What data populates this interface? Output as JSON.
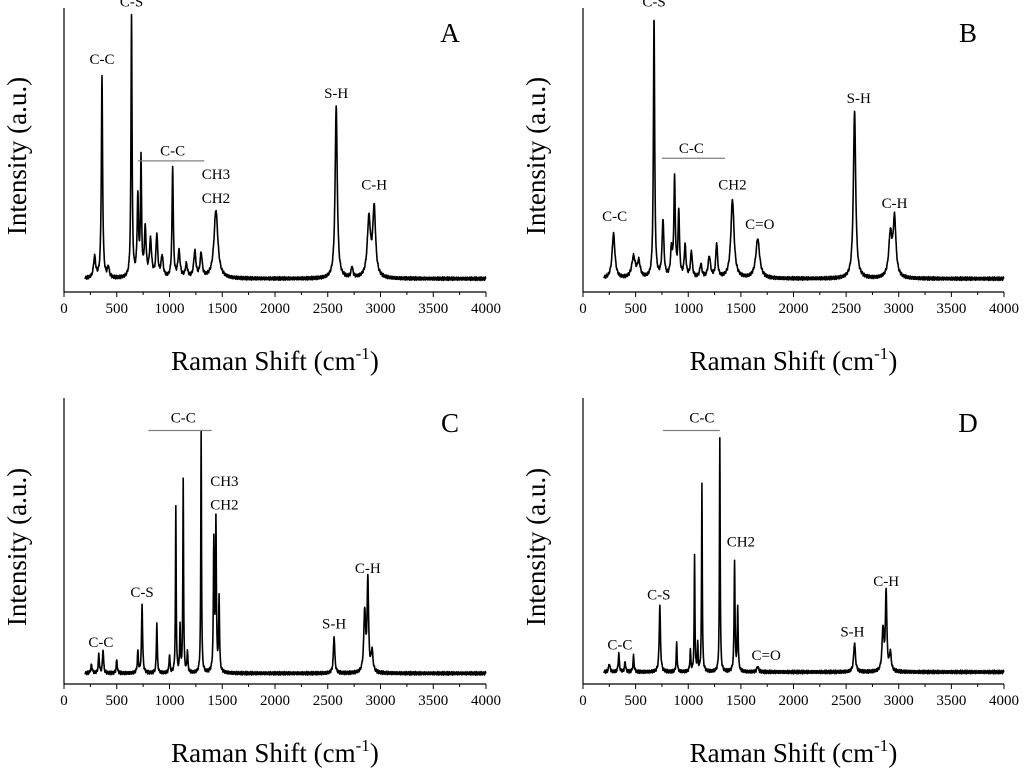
{
  "figure": {
    "axis_color": "#000000",
    "line_color": "#000000"
  },
  "chart_data": [
    {
      "type": "line",
      "panel": "A",
      "xlabel": "Raman Shift (cm",
      "xlabel_sup": "-1",
      "xlabel_end": ")",
      "ylabel": "Intensity (a.u.)",
      "xlim": [
        0,
        4000
      ],
      "xticks": [
        "0",
        "500",
        "1000",
        "1500",
        "2000",
        "2500",
        "3000",
        "3500",
        "4000"
      ],
      "y_tick_labels": false,
      "grid": false,
      "spectrum": {
        "base_range": [
          200,
          4000
        ],
        "base_level": 0.02,
        "peaks": [
          {
            "x": 290,
            "h": 0.08,
            "w": 12
          },
          {
            "x": 360,
            "h": 0.77,
            "w": 7
          },
          {
            "x": 420,
            "h": 0.04,
            "w": 10
          },
          {
            "x": 640,
            "h": 1.0,
            "w": 6
          },
          {
            "x": 700,
            "h": 0.3,
            "w": 8
          },
          {
            "x": 730,
            "h": 0.44,
            "w": 6
          },
          {
            "x": 770,
            "h": 0.18,
            "w": 10
          },
          {
            "x": 820,
            "h": 0.14,
            "w": 12
          },
          {
            "x": 880,
            "h": 0.16,
            "w": 10
          },
          {
            "x": 930,
            "h": 0.08,
            "w": 12
          },
          {
            "x": 1030,
            "h": 0.42,
            "w": 7
          },
          {
            "x": 1090,
            "h": 0.1,
            "w": 12
          },
          {
            "x": 1160,
            "h": 0.05,
            "w": 12
          },
          {
            "x": 1240,
            "h": 0.1,
            "w": 12
          },
          {
            "x": 1300,
            "h": 0.09,
            "w": 12
          },
          {
            "x": 1440,
            "h": 0.26,
            "w": 22
          },
          {
            "x": 2580,
            "h": 0.66,
            "w": 12
          },
          {
            "x": 2730,
            "h": 0.04,
            "w": 10
          },
          {
            "x": 2890,
            "h": 0.22,
            "w": 18
          },
          {
            "x": 2940,
            "h": 0.26,
            "w": 16
          }
        ]
      },
      "annotations": [
        {
          "text": "C-C",
          "x": 360,
          "level": 0.84
        },
        {
          "text": "C-S",
          "x": 640,
          "level": 1.06
        },
        {
          "text": "C-C",
          "x": 1030,
          "level": 0.49
        },
        {
          "text": "CH3",
          "x": 1440,
          "level": 0.4
        },
        {
          "text": "CH2",
          "x": 1440,
          "level": 0.31
        },
        {
          "text": "S-H",
          "x": 2580,
          "level": 0.71
        },
        {
          "text": "C-H",
          "x": 2940,
          "level": 0.36
        }
      ],
      "bracket": {
        "x1": 700,
        "x2": 1330,
        "level": 0.47
      }
    },
    {
      "type": "line",
      "panel": "B",
      "xlabel": "Raman Shift (cm",
      "xlabel_sup": "-1",
      "xlabel_end": ")",
      "ylabel": "Intensity (a.u.)",
      "xlim": [
        0,
        4000
      ],
      "xticks": [
        "0",
        "500",
        "1000",
        "1500",
        "2000",
        "2500",
        "3000",
        "3500",
        "4000"
      ],
      "y_tick_labels": false,
      "grid": false,
      "spectrum": {
        "base_range": [
          200,
          4000
        ],
        "base_level": 0.02,
        "peaks": [
          {
            "x": 290,
            "h": 0.17,
            "w": 16
          },
          {
            "x": 480,
            "h": 0.08,
            "w": 20
          },
          {
            "x": 530,
            "h": 0.06,
            "w": 16
          },
          {
            "x": 675,
            "h": 1.0,
            "w": 7
          },
          {
            "x": 760,
            "h": 0.22,
            "w": 10
          },
          {
            "x": 840,
            "h": 0.1,
            "w": 10
          },
          {
            "x": 870,
            "h": 0.37,
            "w": 8
          },
          {
            "x": 910,
            "h": 0.25,
            "w": 8
          },
          {
            "x": 970,
            "h": 0.12,
            "w": 10
          },
          {
            "x": 1030,
            "h": 0.1,
            "w": 10
          },
          {
            "x": 1120,
            "h": 0.05,
            "w": 12
          },
          {
            "x": 1200,
            "h": 0.08,
            "w": 14
          },
          {
            "x": 1270,
            "h": 0.13,
            "w": 10
          },
          {
            "x": 1420,
            "h": 0.3,
            "w": 18
          },
          {
            "x": 1660,
            "h": 0.15,
            "w": 22
          },
          {
            "x": 2580,
            "h": 0.64,
            "w": 13
          },
          {
            "x": 2920,
            "h": 0.16,
            "w": 18
          },
          {
            "x": 2960,
            "h": 0.22,
            "w": 16
          }
        ]
      },
      "annotations": [
        {
          "text": "C-C",
          "x": 300,
          "level": 0.24
        },
        {
          "text": "C-S",
          "x": 675,
          "level": 1.06
        },
        {
          "text": "C-C",
          "x": 1030,
          "level": 0.5
        },
        {
          "text": "CH2",
          "x": 1420,
          "level": 0.36
        },
        {
          "text": "C=O",
          "x": 1680,
          "level": 0.21
        },
        {
          "text": "S-H",
          "x": 2620,
          "level": 0.69
        },
        {
          "text": "C-H",
          "x": 2960,
          "level": 0.29
        }
      ],
      "bracket": {
        "x1": 750,
        "x2": 1350,
        "level": 0.48
      }
    },
    {
      "type": "line",
      "panel": "C",
      "xlabel": "Raman Shift (cm",
      "xlabel_sup": "-1",
      "xlabel_end": ")",
      "ylabel": "Intensity (a.u.)",
      "xlim": [
        0,
        4000
      ],
      "xticks": [
        "0",
        "500",
        "1000",
        "1500",
        "2000",
        "2500",
        "3000",
        "3500",
        "4000"
      ],
      "y_tick_labels": false,
      "grid": false,
      "spectrum": {
        "base_range": [
          200,
          4000
        ],
        "base_level": 0.01,
        "peaks": [
          {
            "x": 260,
            "h": 0.03,
            "w": 8
          },
          {
            "x": 330,
            "h": 0.07,
            "w": 6
          },
          {
            "x": 370,
            "h": 0.09,
            "w": 6
          },
          {
            "x": 500,
            "h": 0.05,
            "w": 6
          },
          {
            "x": 700,
            "h": 0.08,
            "w": 6
          },
          {
            "x": 740,
            "h": 0.26,
            "w": 6
          },
          {
            "x": 880,
            "h": 0.19,
            "w": 5
          },
          {
            "x": 1000,
            "h": 0.07,
            "w": 5
          },
          {
            "x": 1060,
            "h": 0.63,
            "w": 4
          },
          {
            "x": 1100,
            "h": 0.18,
            "w": 4
          },
          {
            "x": 1130,
            "h": 0.73,
            "w": 4
          },
          {
            "x": 1170,
            "h": 0.08,
            "w": 5
          },
          {
            "x": 1300,
            "h": 0.92,
            "w": 4
          },
          {
            "x": 1420,
            "h": 0.49,
            "w": 5
          },
          {
            "x": 1440,
            "h": 0.57,
            "w": 5
          },
          {
            "x": 1470,
            "h": 0.28,
            "w": 5
          },
          {
            "x": 2560,
            "h": 0.14,
            "w": 8
          },
          {
            "x": 2850,
            "h": 0.23,
            "w": 10
          },
          {
            "x": 2880,
            "h": 0.35,
            "w": 8
          },
          {
            "x": 2920,
            "h": 0.08,
            "w": 10
          }
        ]
      },
      "annotations": [
        {
          "text": "C-C",
          "x": 350,
          "level": 0.11
        },
        {
          "text": "C-S",
          "x": 740,
          "level": 0.3
        },
        {
          "text": "C-C",
          "x": 1130,
          "level": 0.96
        },
        {
          "text": "CH3",
          "x": 1520,
          "level": 0.72
        },
        {
          "text": "CH2",
          "x": 1520,
          "level": 0.63
        },
        {
          "text": "S-H",
          "x": 2560,
          "level": 0.18
        },
        {
          "text": "C-H",
          "x": 2880,
          "level": 0.39
        }
      ],
      "bracket": {
        "x1": 800,
        "x2": 1400,
        "level": 0.93
      }
    },
    {
      "type": "line",
      "panel": "D",
      "xlabel": "Raman Shift (cm",
      "xlabel_sup": "-1",
      "xlabel_end": ")",
      "ylabel": "Intensity (a.u.)",
      "xlim": [
        0,
        4000
      ],
      "xticks": [
        "0",
        "500",
        "1000",
        "1500",
        "2000",
        "2500",
        "3000",
        "3500",
        "4000"
      ],
      "y_tick_labels": false,
      "grid": false,
      "spectrum": {
        "base_range": [
          200,
          4000
        ],
        "base_level": 0.015,
        "peaks": [
          {
            "x": 250,
            "h": 0.03,
            "w": 8
          },
          {
            "x": 340,
            "h": 0.07,
            "w": 6
          },
          {
            "x": 400,
            "h": 0.04,
            "w": 6
          },
          {
            "x": 480,
            "h": 0.06,
            "w": 6
          },
          {
            "x": 730,
            "h": 0.25,
            "w": 7
          },
          {
            "x": 890,
            "h": 0.11,
            "w": 5
          },
          {
            "x": 1020,
            "h": 0.08,
            "w": 5
          },
          {
            "x": 1060,
            "h": 0.44,
            "w": 4
          },
          {
            "x": 1090,
            "h": 0.1,
            "w": 4
          },
          {
            "x": 1130,
            "h": 0.71,
            "w": 4
          },
          {
            "x": 1300,
            "h": 0.89,
            "w": 4
          },
          {
            "x": 1440,
            "h": 0.42,
            "w": 5
          },
          {
            "x": 1470,
            "h": 0.24,
            "w": 5
          },
          {
            "x": 1660,
            "h": 0.02,
            "w": 10
          },
          {
            "x": 2580,
            "h": 0.11,
            "w": 10
          },
          {
            "x": 2850,
            "h": 0.16,
            "w": 10
          },
          {
            "x": 2880,
            "h": 0.3,
            "w": 8
          },
          {
            "x": 2920,
            "h": 0.07,
            "w": 10
          }
        ]
      },
      "annotations": [
        {
          "text": "C-C",
          "x": 350,
          "level": 0.1
        },
        {
          "text": "C-S",
          "x": 720,
          "level": 0.29
        },
        {
          "text": "C-C",
          "x": 1130,
          "level": 0.96
        },
        {
          "text": "CH2",
          "x": 1500,
          "level": 0.49
        },
        {
          "text": "C=O",
          "x": 1740,
          "level": 0.06
        },
        {
          "text": "S-H",
          "x": 2560,
          "level": 0.15
        },
        {
          "text": "C-H",
          "x": 2880,
          "level": 0.34
        }
      ],
      "bracket": {
        "x1": 760,
        "x2": 1300,
        "level": 0.93
      }
    }
  ]
}
